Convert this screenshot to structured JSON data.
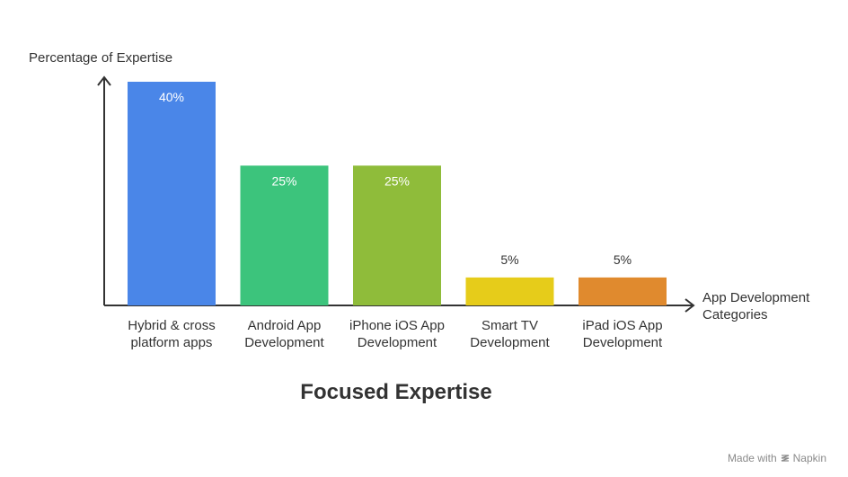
{
  "chart_data": {
    "type": "bar",
    "title": "Focused Expertise",
    "ylabel": "Percentage of Expertise",
    "xlabel": "App Development Categories",
    "ylim": [
      0,
      40
    ],
    "grid": false,
    "legend": "none",
    "categories": [
      "Hybrid & cross platform apps",
      "Android App Development",
      "iPhone iOS App Development",
      "Smart TV Development",
      "iPad iOS App Development"
    ],
    "category_lines": [
      [
        "Hybrid & cross",
        "platform apps"
      ],
      [
        "Android App",
        "Development"
      ],
      [
        "iPhone iOS App",
        "Development"
      ],
      [
        "Smart TV",
        "Development"
      ],
      [
        "iPad iOS App",
        "Development"
      ]
    ],
    "xlabel_lines": [
      "App Development",
      "Categories"
    ],
    "values": [
      40,
      25,
      25,
      5,
      5
    ],
    "value_labels": [
      "40%",
      "25%",
      "25%",
      "5%",
      "5%"
    ],
    "colors": [
      "#4a86e8",
      "#3cc47c",
      "#8fbc3a",
      "#e6cc1a",
      "#e08a2e"
    ]
  },
  "footer": {
    "watermark": "Made with",
    "brand": "Napkin",
    "brand_icon": "napkin-logo-icon"
  }
}
